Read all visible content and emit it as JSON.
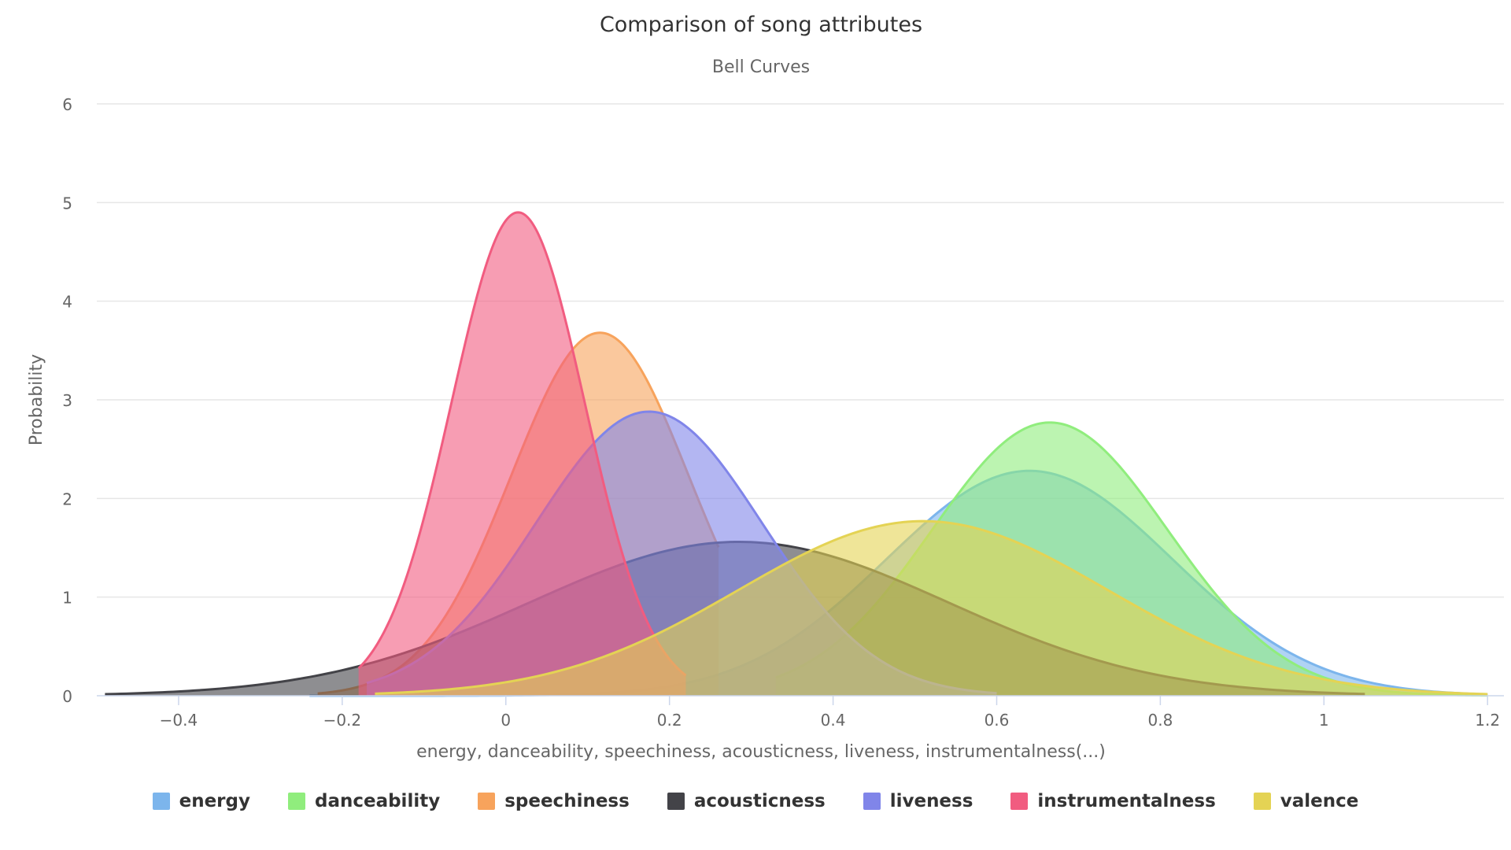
{
  "chart_data": {
    "type": "area",
    "title": "Comparison of song attributes",
    "subtitle": "Bell Curves",
    "xlabel": "energy, danceability, speechiness, acousticness, liveness, instrumentalness(...)",
    "ylabel": "Probability",
    "xlim": [
      -0.5,
      1.22
    ],
    "ylim": [
      0,
      6
    ],
    "x_ticks": [
      "−0.4",
      "−0.2",
      "0",
      "0.2",
      "0.4",
      "0.6",
      "0.8",
      "1",
      "1.2"
    ],
    "x_tick_values": [
      -0.4,
      -0.2,
      0,
      0.2,
      0.4,
      0.6,
      0.8,
      1,
      1.2
    ],
    "y_ticks": [
      "0",
      "1",
      "2",
      "3",
      "4",
      "5",
      "6"
    ],
    "y_tick_values": [
      0,
      1,
      2,
      3,
      4,
      5,
      6
    ],
    "grid": true,
    "legend_position": "bottom",
    "series": [
      {
        "name": "energy",
        "color": "#7cb5ec",
        "mean": 0.64,
        "peak": 2.28,
        "range": [
          -0.24,
          1.2
        ]
      },
      {
        "name": "danceability",
        "color": "#90ed7d",
        "mean": 0.665,
        "peak": 2.77,
        "range": [
          0.33,
          1.2
        ]
      },
      {
        "name": "speechiness",
        "color": "#f7a35c",
        "mean": 0.115,
        "peak": 3.68,
        "range": [
          -0.23,
          0.26
        ]
      },
      {
        "name": "acousticness",
        "color": "#434348",
        "mean": 0.285,
        "peak": 1.56,
        "range": [
          -0.49,
          1.05
        ]
      },
      {
        "name": "liveness",
        "color": "#8085e9",
        "mean": 0.175,
        "peak": 2.88,
        "range": [
          -0.17,
          0.6
        ]
      },
      {
        "name": "instrumentalness",
        "color": "#f15c80",
        "mean": 0.015,
        "peak": 4.9,
        "range": [
          -0.18,
          0.22
        ]
      },
      {
        "name": "valence",
        "color": "#e4d354",
        "mean": 0.51,
        "peak": 1.77,
        "range": [
          -0.16,
          1.2
        ]
      }
    ]
  }
}
